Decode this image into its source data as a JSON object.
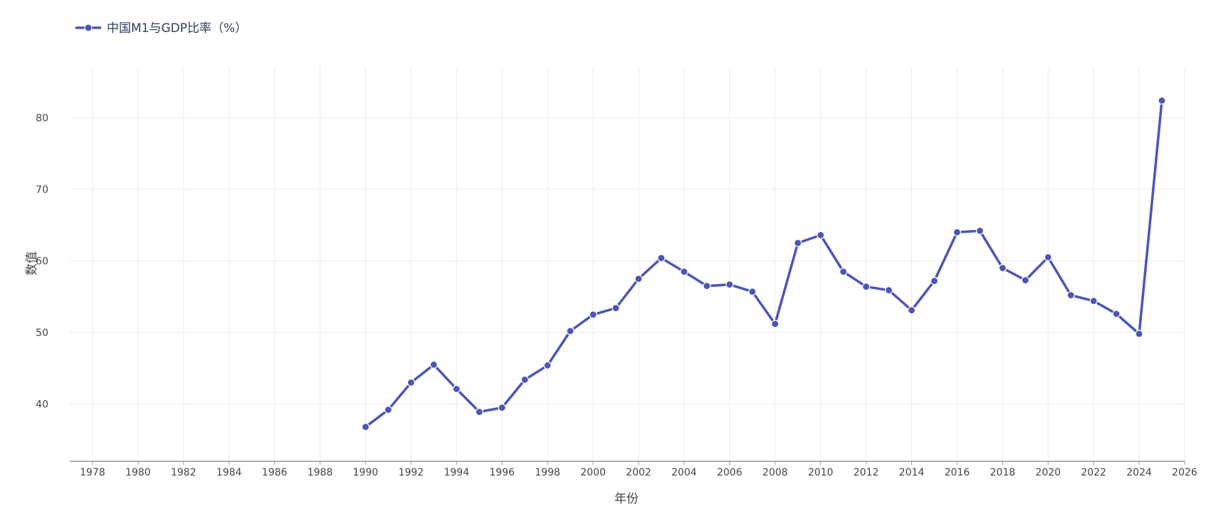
{
  "chart_data": {
    "type": "line",
    "legend": {
      "label": "中国M1与GDP比率（%）",
      "position": "top-left"
    },
    "xlabel": "年份",
    "ylabel": "数值",
    "xlim": [
      1977,
      2026
    ],
    "ylim": [
      32,
      87
    ],
    "x_ticks": [
      1978,
      1980,
      1982,
      1984,
      1986,
      1988,
      1990,
      1992,
      1994,
      1996,
      1998,
      2000,
      2002,
      2004,
      2006,
      2008,
      2010,
      2012,
      2014,
      2016,
      2018,
      2020,
      2022,
      2024,
      2026
    ],
    "y_ticks": [
      40,
      50,
      60,
      70,
      80
    ],
    "grid": true,
    "colors": {
      "series": "#4b56b5",
      "marker_edge": "#ffffff"
    },
    "series": [
      {
        "name": "中国M1与GDP比率（%）",
        "x": [
          1990,
          1991,
          1992,
          1993,
          1994,
          1995,
          1996,
          1997,
          1998,
          1999,
          2000,
          2001,
          2002,
          2003,
          2004,
          2005,
          2006,
          2007,
          2008,
          2009,
          2010,
          2011,
          2012,
          2013,
          2014,
          2015,
          2016,
          2017,
          2018,
          2019,
          2020,
          2021,
          2022,
          2023,
          2024,
          2025
        ],
        "values": [
          36.8,
          39.2,
          43.0,
          45.5,
          42.1,
          38.9,
          39.5,
          43.4,
          45.4,
          50.2,
          52.5,
          53.4,
          57.5,
          60.4,
          58.5,
          56.5,
          56.7,
          55.7,
          51.2,
          62.5,
          63.6,
          58.5,
          56.4,
          55.9,
          53.1,
          57.2,
          64.0,
          64.2,
          59.0,
          57.3,
          60.5,
          55.2,
          54.4,
          52.6,
          49.8,
          82.4
        ]
      }
    ]
  }
}
